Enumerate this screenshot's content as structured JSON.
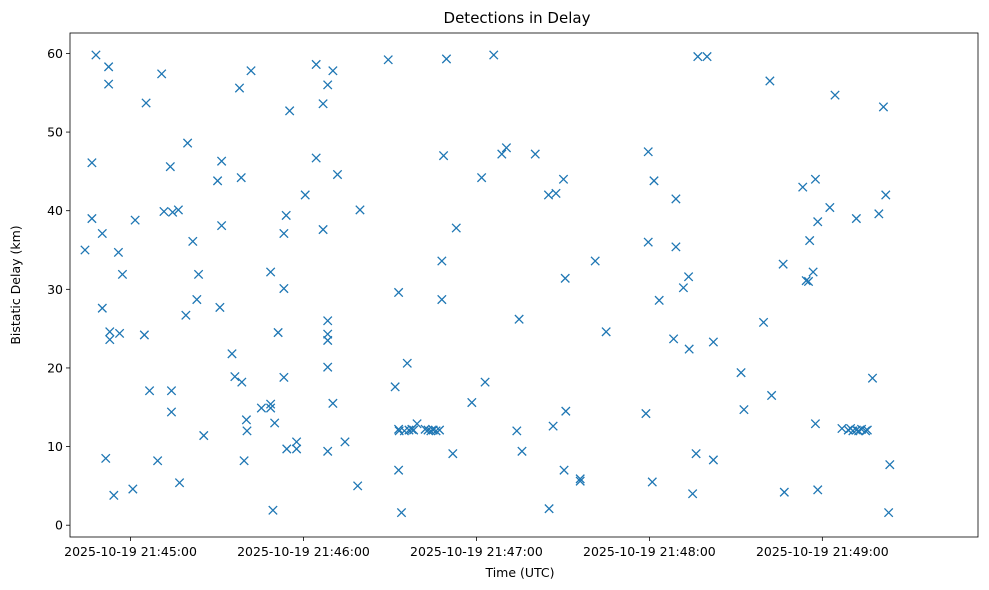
{
  "chart_data": {
    "type": "scatter",
    "title": "Detections in Delay",
    "xlabel": "Time (UTC)",
    "ylabel": "Bistatic Delay (km)",
    "marker": "x",
    "color": "#1f77b4",
    "x_axis": {
      "unit": "seconds after 2025-10-19 21:44:00 UTC",
      "range": [
        39,
        354
      ]
    },
    "ylim": [
      -1.5,
      62.6
    ],
    "xticks": [
      {
        "value": 60,
        "label": "2025-10-19 21:45:00"
      },
      {
        "value": 120,
        "label": "2025-10-19 21:46:00"
      },
      {
        "value": 180,
        "label": "2025-10-19 21:47:00"
      },
      {
        "value": 240,
        "label": "2025-10-19 21:48:00"
      },
      {
        "value": 300,
        "label": "2025-10-19 21:49:00"
      }
    ],
    "yticks": [
      0,
      10,
      20,
      30,
      40,
      50,
      60
    ],
    "points": [
      [
        44.2,
        35.0
      ],
      [
        46.6,
        46.1
      ],
      [
        46.6,
        39.0
      ],
      [
        48.0,
        59.8
      ],
      [
        50.2,
        37.1
      ],
      [
        50.2,
        27.6
      ],
      [
        51.4,
        8.5
      ],
      [
        52.4,
        58.3
      ],
      [
        52.4,
        56.1
      ],
      [
        52.8,
        24.6
      ],
      [
        52.8,
        23.6
      ],
      [
        54.2,
        3.8
      ],
      [
        55.8,
        34.7
      ],
      [
        56.2,
        24.4
      ],
      [
        57.2,
        31.9
      ],
      [
        60.8,
        4.6
      ],
      [
        61.6,
        38.8
      ],
      [
        64.8,
        24.2
      ],
      [
        65.4,
        53.7
      ],
      [
        66.6,
        17.1
      ],
      [
        69.4,
        8.2
      ],
      [
        70.8,
        57.4
      ],
      [
        71.6,
        39.9
      ],
      [
        73.8,
        45.6
      ],
      [
        74.6,
        39.8
      ],
      [
        74.2,
        17.1
      ],
      [
        74.2,
        14.4
      ],
      [
        76.6,
        40.1
      ],
      [
        77.0,
        5.4
      ],
      [
        79.2,
        26.7
      ],
      [
        79.8,
        48.6
      ],
      [
        81.6,
        36.1
      ],
      [
        83.0,
        28.7
      ],
      [
        83.6,
        31.9
      ],
      [
        85.4,
        11.4
      ],
      [
        90.2,
        43.8
      ],
      [
        91.0,
        27.7
      ],
      [
        91.6,
        46.3
      ],
      [
        91.6,
        38.1
      ],
      [
        95.2,
        21.8
      ],
      [
        96.2,
        18.9
      ],
      [
        97.8,
        55.6
      ],
      [
        98.4,
        44.2
      ],
      [
        98.6,
        18.2
      ],
      [
        99.4,
        8.2
      ],
      [
        100.2,
        13.4
      ],
      [
        100.4,
        12.0
      ],
      [
        101.8,
        57.8
      ],
      [
        105.4,
        14.9
      ],
      [
        108.6,
        15.4
      ],
      [
        108.6,
        14.9
      ],
      [
        108.6,
        32.2
      ],
      [
        109.4,
        1.9
      ],
      [
        110.0,
        13.0
      ],
      [
        111.2,
        24.5
      ],
      [
        113.2,
        18.8
      ],
      [
        113.2,
        37.1
      ],
      [
        113.2,
        30.1
      ],
      [
        114.0,
        39.4
      ],
      [
        114.2,
        9.7
      ],
      [
        115.2,
        52.7
      ],
      [
        117.6,
        9.7
      ],
      [
        117.6,
        10.6
      ],
      [
        120.6,
        42.0
      ],
      [
        124.4,
        58.6
      ],
      [
        124.4,
        46.7
      ],
      [
        126.8,
        53.6
      ],
      [
        126.8,
        37.6
      ],
      [
        128.4,
        56.0
      ],
      [
        128.4,
        26.0
      ],
      [
        128.4,
        24.3
      ],
      [
        128.4,
        23.5
      ],
      [
        128.4,
        20.1
      ],
      [
        128.4,
        9.4
      ],
      [
        130.2,
        57.8
      ],
      [
        130.2,
        15.5
      ],
      [
        131.8,
        44.6
      ],
      [
        134.4,
        10.6
      ],
      [
        139.6,
        40.1
      ],
      [
        138.8,
        5.0
      ],
      [
        149.4,
        59.2
      ],
      [
        151.8,
        17.6
      ],
      [
        153.0,
        29.6
      ],
      [
        153.0,
        12.2
      ],
      [
        153.0,
        7.0
      ],
      [
        153.2,
        12.0
      ],
      [
        154.0,
        1.6
      ],
      [
        155.0,
        12.0
      ],
      [
        156.0,
        20.6
      ],
      [
        156.6,
        12.1
      ],
      [
        157.6,
        12.2
      ],
      [
        158.2,
        12.1
      ],
      [
        159.4,
        12.9
      ],
      [
        162.2,
        12.2
      ],
      [
        163.2,
        12.1
      ],
      [
        164.2,
        12.0
      ],
      [
        165.0,
        12.1
      ],
      [
        166.0,
        12.0
      ],
      [
        167.2,
        12.1
      ],
      [
        168.0,
        33.6
      ],
      [
        168.0,
        28.7
      ],
      [
        168.6,
        47.0
      ],
      [
        169.6,
        59.3
      ],
      [
        171.8,
        9.1
      ],
      [
        173.0,
        37.8
      ],
      [
        178.4,
        15.6
      ],
      [
        181.8,
        44.2
      ],
      [
        183.0,
        18.2
      ],
      [
        186.0,
        59.8
      ],
      [
        188.8,
        47.2
      ],
      [
        190.4,
        48.0
      ],
      [
        194.0,
        12.0
      ],
      [
        194.8,
        26.2
      ],
      [
        195.8,
        9.4
      ],
      [
        200.4,
        47.2
      ],
      [
        205.0,
        42.0
      ],
      [
        205.2,
        2.1
      ],
      [
        206.6,
        12.6
      ],
      [
        207.6,
        42.2
      ],
      [
        210.2,
        44.0
      ],
      [
        210.4,
        7.0
      ],
      [
        210.8,
        31.4
      ],
      [
        211.0,
        14.5
      ],
      [
        216.0,
        5.6
      ],
      [
        216.0,
        5.9
      ],
      [
        221.2,
        33.6
      ],
      [
        225.0,
        24.6
      ],
      [
        238.8,
        14.2
      ],
      [
        239.6,
        36.0
      ],
      [
        239.6,
        47.5
      ],
      [
        241.0,
        5.5
      ],
      [
        241.6,
        43.8
      ],
      [
        243.4,
        28.6
      ],
      [
        248.4,
        23.7
      ],
      [
        249.2,
        35.4
      ],
      [
        249.2,
        41.5
      ],
      [
        251.8,
        30.2
      ],
      [
        253.6,
        31.6
      ],
      [
        253.8,
        22.4
      ],
      [
        255.0,
        4.0
      ],
      [
        256.2,
        9.1
      ],
      [
        256.8,
        59.6
      ],
      [
        260.0,
        59.6
      ],
      [
        262.2,
        8.3
      ],
      [
        262.2,
        23.3
      ],
      [
        271.8,
        19.4
      ],
      [
        272.8,
        14.7
      ],
      [
        279.6,
        25.8
      ],
      [
        281.8,
        56.5
      ],
      [
        282.4,
        16.5
      ],
      [
        286.4,
        33.2
      ],
      [
        286.8,
        4.2
      ],
      [
        293.2,
        43.0
      ],
      [
        294.4,
        31.1
      ],
      [
        295.2,
        31.0
      ],
      [
        295.6,
        36.2
      ],
      [
        296.8,
        32.2
      ],
      [
        297.6,
        44.0
      ],
      [
        297.6,
        12.9
      ],
      [
        298.4,
        38.6
      ],
      [
        298.4,
        4.5
      ],
      [
        302.6,
        40.4
      ],
      [
        304.4,
        54.7
      ],
      [
        306.8,
        12.3
      ],
      [
        309.0,
        12.1
      ],
      [
        309.8,
        12.3
      ],
      [
        310.6,
        12.0
      ],
      [
        311.8,
        39.0
      ],
      [
        311.8,
        12.1
      ],
      [
        312.6,
        12.0
      ],
      [
        313.6,
        12.2
      ],
      [
        315.0,
        12.0
      ],
      [
        315.6,
        12.1
      ],
      [
        317.4,
        18.7
      ],
      [
        319.6,
        39.6
      ],
      [
        321.2,
        53.2
      ],
      [
        322.0,
        42.0
      ],
      [
        323.0,
        1.6
      ],
      [
        323.4,
        7.7
      ]
    ]
  }
}
